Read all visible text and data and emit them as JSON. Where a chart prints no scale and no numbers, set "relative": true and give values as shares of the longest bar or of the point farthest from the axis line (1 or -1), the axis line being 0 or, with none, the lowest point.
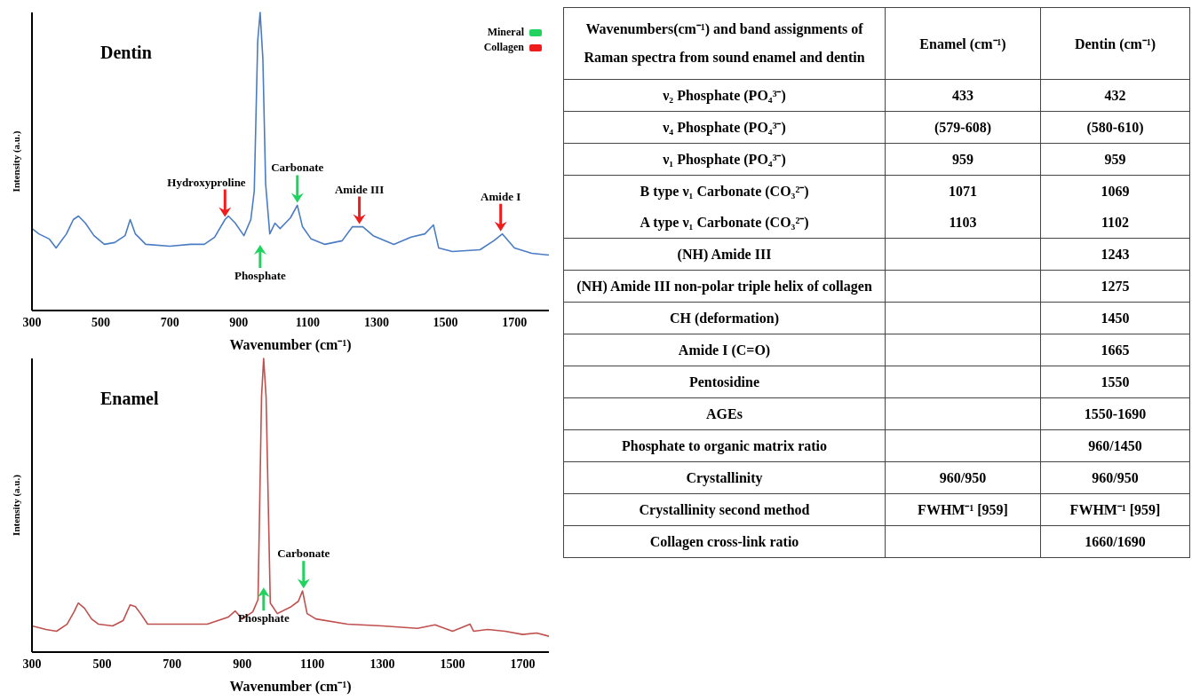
{
  "chart_data": [
    {
      "type": "line",
      "title": "Dentin",
      "xlabel": "Wavenumber (cm⁻¹)",
      "ylabel": "Intensity (a.u.)",
      "relative": true,
      "xlim": [
        300,
        1800
      ],
      "xticks": [
        300,
        500,
        700,
        900,
        1100,
        1300,
        1500,
        1700
      ],
      "series": [
        {
          "color": "#4a7cc4",
          "x": [
            300,
            320,
            350,
            370,
            400,
            420,
            435,
            455,
            480,
            510,
            540,
            570,
            585,
            600,
            630,
            700,
            760,
            800,
            830,
            860,
            870,
            890,
            915,
            935,
            945,
            955,
            962,
            970,
            978,
            990,
            1005,
            1020,
            1050,
            1070,
            1085,
            1110,
            1150,
            1200,
            1230,
            1260,
            1290,
            1350,
            1400,
            1440,
            1465,
            1480,
            1520,
            1600,
            1640,
            1665,
            1700,
            1750,
            1800
          ],
          "values": [
            0.275,
            0.257,
            0.24,
            0.21,
            0.257,
            0.305,
            0.317,
            0.293,
            0.251,
            0.222,
            0.228,
            0.251,
            0.305,
            0.257,
            0.222,
            0.216,
            0.222,
            0.222,
            0.246,
            0.305,
            0.317,
            0.293,
            0.251,
            0.305,
            0.401,
            0.904,
            1.0,
            0.844,
            0.425,
            0.257,
            0.293,
            0.275,
            0.311,
            0.353,
            0.281,
            0.24,
            0.222,
            0.234,
            0.281,
            0.281,
            0.251,
            0.222,
            0.246,
            0.257,
            0.287,
            0.21,
            0.198,
            0.204,
            0.234,
            0.257,
            0.21,
            0.192,
            0.186
          ]
        }
      ],
      "annotations": [
        {
          "text": "Hydroxyproline",
          "x": 860,
          "y": 0.305
        },
        "Phosphate",
        {
          "text": "Carbonate",
          "x": 1070,
          "y": 0.353
        },
        {
          "text": "Amide III",
          "x": 1250,
          "y": 0.281
        },
        {
          "text": "Amide I",
          "x": 1660,
          "y": 0.257
        },
        "Mineral",
        "Collagen"
      ]
    },
    {
      "type": "line",
      "title": "Enamel",
      "xlabel": "Wavenumber (cm⁻¹)",
      "ylabel": "Intensity (a.u.)",
      "relative": true,
      "xlim": [
        300,
        1775
      ],
      "xticks": [
        300,
        500,
        700,
        900,
        1100,
        1300,
        1500,
        1700
      ],
      "series": [
        {
          "color": "#c0504d",
          "x": [
            300,
            340,
            370,
            400,
            420,
            432,
            450,
            470,
            490,
            530,
            560,
            580,
            595,
            610,
            630,
            700,
            800,
            860,
            880,
            900,
            930,
            945,
            955,
            961,
            968,
            980,
            1000,
            1040,
            1060,
            1072,
            1085,
            1110,
            1200,
            1300,
            1400,
            1450,
            1500,
            1550,
            1560,
            1600,
            1650,
            1700,
            1740,
            1775
          ],
          "values": [
            0.089,
            0.077,
            0.071,
            0.095,
            0.137,
            0.167,
            0.149,
            0.113,
            0.095,
            0.089,
            0.107,
            0.161,
            0.155,
            0.131,
            0.095,
            0.095,
            0.095,
            0.119,
            0.14,
            0.113,
            0.137,
            0.179,
            0.869,
            1.0,
            0.869,
            0.167,
            0.131,
            0.155,
            0.173,
            0.208,
            0.131,
            0.113,
            0.095,
            0.089,
            0.081,
            0.093,
            0.071,
            0.095,
            0.071,
            0.077,
            0.071,
            0.06,
            0.065,
            0.054
          ]
        }
      ],
      "annotations": [
        "Phosphate",
        {
          "text": "Carbonate",
          "x": 1075,
          "y": 0.208
        }
      ]
    },
    {
      "type": "other",
      "title": "Wavenumbers(cm⁻¹) and band assignments of Raman spectra from sound enamel and dentin",
      "categories": [
        "Enamel (cm⁻¹)",
        "Dentin (cm⁻¹)"
      ],
      "y_categories": [
        "ν₂ Phosphate (PO₄³⁻)",
        "ν₄ Phosphate (PO₄³⁻)",
        "ν₁ Phosphate (PO₄³⁻)",
        "B type ν₁ Carbonate (CO₃²⁻)\nA type ν₁ Carbonate (CO₃²⁻)",
        "(NH) Amide III",
        "(NH) Amide III non-polar triple helix of collagen",
        "CH (deformation)",
        "Amide I (C=O)",
        "Pentosidine",
        "AGEs",
        "Phosphate to organic matrix ratio",
        "Crystallinity",
        "Crystallinity second method",
        "Collagen cross-link ratio"
      ],
      "cell_labels": [
        [
          "433",
          "432"
        ],
        [
          "(579-608)",
          "(580-610)"
        ],
        [
          "959",
          "959"
        ],
        [
          "1071\n1103",
          "1069\n1102"
        ],
        [
          null,
          "1243"
        ],
        [
          null,
          "1275"
        ],
        [
          null,
          "1450"
        ],
        [
          null,
          "1665"
        ],
        [
          null,
          "1550"
        ],
        [
          null,
          "1550-1690"
        ],
        [
          null,
          "960/1450"
        ],
        [
          "960/950",
          "960/950"
        ],
        [
          "FWHM⁻¹ [959]",
          "FWHM⁻¹ [959]"
        ],
        [
          null,
          "1660/1690"
        ]
      ]
    }
  ]
}
